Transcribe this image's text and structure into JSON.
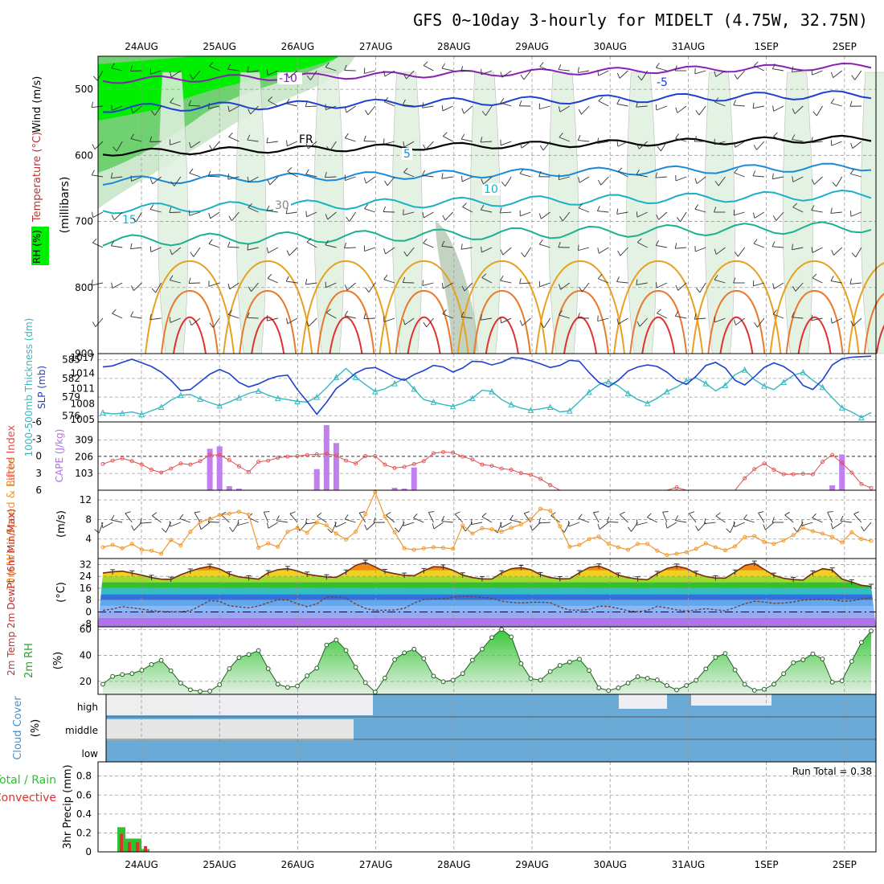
{
  "title": "GFS 0~10day 3-hourly for MIDELT (4.75W, 32.75N)",
  "dates": [
    "24AUG",
    "25AUG",
    "26AUG",
    "27AUG",
    "28AUG",
    "29AUG",
    "30AUG",
    "31AUG",
    "1SEP",
    "2SEP"
  ],
  "colors": {
    "rh_green": "#00ee00",
    "t_purple": "#8a1fb8",
    "t_blue": "#1f3fd0",
    "t_cyan": "#19b0c8",
    "t_teal": "#1bb090",
    "t_orange": "#e8a020",
    "t_red": "#e03030",
    "slp": "#1f3fd0",
    "thick": "#35b8c0",
    "li": "#e05050",
    "cape": "#c080f0",
    "wind": "#f09830",
    "precip_total": "#30c030",
    "precip_conv": "#e03030",
    "cloud": "#6aaad6"
  },
  "chart_data": [
    {
      "type": "heatmap",
      "name": "upper-air",
      "ylabel": "(millibars)",
      "side_labels": [
        "Wind (m/s)",
        "Temperature (°C)",
        "RH (%)"
      ],
      "yticks": [
        500,
        600,
        700,
        800,
        900
      ],
      "contour_labels": [
        "-10",
        "-5",
        "FR",
        "5",
        "10",
        "15",
        "30"
      ]
    },
    {
      "type": "line",
      "name": "slp-thickness",
      "left_label": "1000-500mb Thickness (dm)",
      "right_label": "SLP (mb)",
      "thickness_ticks": [
        585,
        582,
        579,
        576
      ],
      "slp_ticks": [
        1017,
        1014,
        1011,
        1008,
        1005
      ],
      "thickness": [
        576.5,
        576.3,
        576.4,
        576.6,
        576.2,
        576.8,
        577.4,
        578.5,
        579.3,
        579.4,
        578.7,
        578.1,
        577.6,
        578.2,
        578.9,
        579.6,
        580.0,
        579.3,
        578.8,
        578.6,
        578.3,
        578.2,
        579.0,
        580.5,
        582.2,
        583.6,
        582.2,
        581.0,
        579.9,
        580.3,
        581.2,
        582.0,
        580.3,
        578.6,
        578.2,
        577.8,
        577.5,
        578.0,
        578.8,
        580.1,
        579.9,
        578.6,
        577.8,
        577.2,
        576.9,
        577.1,
        577.4,
        576.6,
        576.8,
        578.3,
        579.8,
        581.0,
        581.5,
        580.8,
        579.6,
        578.6,
        578.0,
        578.8,
        579.9,
        580.6,
        581.6,
        582.1,
        581.2,
        580.0,
        580.9,
        582.6,
        583.4,
        581.8,
        580.8,
        580.2,
        581.4,
        582.5,
        583.0,
        581.7,
        580.6,
        578.9,
        577.3,
        576.6,
        575.7,
        576.5
      ],
      "slp": [
        1015.2,
        1015.4,
        1016.1,
        1016.7,
        1016.0,
        1015.3,
        1014.2,
        1012.6,
        1010.6,
        1010.8,
        1012.3,
        1013.8,
        1014.7,
        1013.9,
        1012.2,
        1011.3,
        1011.9,
        1012.8,
        1013.4,
        1013.6,
        1010.8,
        1008.5,
        1006.0,
        1008.3,
        1011.0,
        1012.4,
        1014.0,
        1014.9,
        1015.1,
        1014.2,
        1013.2,
        1012.6,
        1013.7,
        1014.5,
        1015.5,
        1015.2,
        1014.2,
        1015.0,
        1016.3,
        1016.2,
        1015.6,
        1016.1,
        1017.0,
        1016.9,
        1016.4,
        1015.8,
        1015.1,
        1015.5,
        1016.5,
        1016.3,
        1014.1,
        1012.2,
        1011.3,
        1012.6,
        1014.4,
        1015.2,
        1015.6,
        1015.3,
        1014.2,
        1012.6,
        1011.8,
        1013.4,
        1015.5,
        1016.1,
        1015.0,
        1012.6,
        1011.7,
        1013.3,
        1015.1,
        1016.0,
        1015.3,
        1014.0,
        1011.6,
        1010.8,
        1012.7,
        1015.6,
        1016.8,
        1017.1,
        1017.2,
        1017.3
      ]
    },
    {
      "type": "bar",
      "name": "lifted-index-cape",
      "left_label": "Lifted Index",
      "right_label": "CAPE (J/kg)",
      "li_ticks": [
        "-6",
        "-3",
        "0",
        "3",
        "6"
      ],
      "cape_ticks": [
        309,
        206,
        103
      ],
      "lifted_index": [
        1.4,
        0.8,
        0.4,
        0.9,
        1.5,
        2.4,
        2.9,
        2.2,
        1.3,
        1.5,
        0.9,
        -0.2,
        -0.2,
        0.7,
        1.8,
        2.8,
        1.0,
        0.8,
        0.3,
        0.1,
        0.0,
        -0.2,
        -0.3,
        -0.4,
        -0.1,
        0.8,
        1.3,
        0.0,
        0.0,
        1.5,
        2.1,
        1.9,
        1.4,
        0.9,
        -0.5,
        -0.7,
        -0.6,
        0.1,
        0.6,
        1.5,
        1.7,
        2.2,
        2.4,
        3.0,
        3.3,
        4.0,
        5.1,
        6,
        6,
        6,
        6,
        6,
        6,
        6,
        6,
        6,
        6,
        6,
        6,
        5.5,
        6,
        6,
        6,
        6,
        6,
        6,
        3.9,
        2.3,
        1.3,
        2.4,
        3.2,
        3.2,
        3.1,
        3.2,
        1.0,
        -0.2,
        1.2,
        2.9,
        4.9,
        5.6
      ],
      "cape": [
        2,
        0,
        0,
        0,
        0,
        0,
        0,
        0,
        0,
        0,
        0,
        255,
        270,
        25,
        10,
        0,
        0,
        0,
        0,
        0,
        0,
        0,
        130,
        400,
        290,
        0,
        0,
        0,
        0,
        0,
        15,
        10,
        140,
        0,
        0,
        0,
        0,
        0,
        0,
        0,
        0,
        0,
        0,
        0,
        0,
        0,
        0,
        0,
        0,
        0,
        0,
        0,
        0,
        0,
        0,
        0,
        0,
        0,
        0,
        0,
        0,
        0,
        0,
        0,
        0,
        0,
        0,
        0,
        0,
        0,
        0,
        0,
        0,
        0,
        0,
        30,
        220,
        0,
        0,
        0
      ]
    },
    {
      "type": "line",
      "name": "surface-wind",
      "left_label": "10m Wind Speed & Barbs",
      "unit": "(m/s)",
      "yticks": [
        12,
        8,
        4
      ],
      "speed": [
        2.3,
        2.8,
        2.1,
        3.0,
        1.8,
        1.6,
        1.0,
        3.8,
        2.7,
        5.5,
        7.5,
        8.1,
        8.9,
        9.2,
        9.6,
        9.0,
        2.2,
        3.1,
        2.4,
        5.5,
        6.3,
        5.3,
        7.4,
        6.8,
        5.1,
        3.9,
        5.5,
        9.1,
        13.6,
        8.6,
        5.4,
        2.1,
        1.8,
        2.1,
        2.3,
        2.2,
        2.0,
        6.8,
        5.1,
        6.2,
        6.0,
        5.5,
        6.3,
        7.0,
        8.1,
        10.2,
        9.8,
        6.6,
        2.4,
        2.8,
        4.0,
        4.5,
        3.0,
        2.3,
        1.8,
        3.0,
        3.0,
        1.6,
        0.7,
        1.0,
        1.3,
        2.0,
        3.1,
        2.3,
        1.7,
        2.5,
        4.4,
        4.6,
        3.4,
        3.0,
        3.7,
        4.8,
        6.3,
        5.6,
        5.1,
        4.4,
        3.3,
        5.4,
        4.0,
        3.6
      ]
    },
    {
      "type": "area",
      "name": "temperature-2m",
      "left_label": "2m Temp 2m DewPt (6hr Min/Max)",
      "unit": "(°C)",
      "yticks": [
        32,
        24,
        16,
        8,
        0,
        -8
      ],
      "temperature": [
        26.2,
        27.0,
        27.5,
        26.2,
        24.8,
        23.2,
        22.1,
        22.0,
        25.0,
        27.5,
        29.5,
        30.7,
        29.0,
        25.6,
        23.6,
        22.9,
        22.1,
        26.4,
        28.5,
        29.2,
        27.6,
        25.4,
        24.4,
        23.6,
        23.3,
        26.8,
        31.4,
        33.4,
        30.4,
        27.2,
        25.8,
        24.7,
        24.4,
        27.8,
        30.5,
        30.2,
        28.1,
        24.9,
        23.2,
        22.3,
        22.2,
        26.3,
        29.2,
        29.9,
        28.5,
        25.1,
        23.2,
        22.3,
        22.4,
        26.4,
        30.0,
        30.9,
        28.4,
        24.8,
        23.2,
        22.2,
        21.7,
        25.9,
        29.3,
        30.8,
        29.4,
        26.0,
        23.9,
        22.9,
        22.8,
        26.8,
        31.3,
        32.8,
        28.7,
        24.7,
        22.7,
        21.8,
        21.5,
        26.2,
        29.2,
        28.2,
        22.2,
        20.2,
        18.0,
        17.2
      ],
      "dewpoint": [
        1.1,
        2.0,
        3.6,
        2.8,
        1.9,
        1.0,
        0.3,
        0.2,
        0.2,
        0.9,
        4.2,
        7.7,
        7.2,
        4.2,
        3.5,
        2.8,
        4.0,
        6.3,
        8.2,
        8.1,
        5.6,
        3.6,
        5.5,
        10.0,
        10.2,
        9.3,
        5.3,
        2.4,
        1.1,
        1.2,
        1.3,
        2.5,
        6.0,
        8.4,
        8.8,
        8.9,
        10.0,
        10.5,
        10.4,
        9.8,
        9.3,
        7.2,
        6.5,
        6.1,
        6.5,
        6.6,
        6.3,
        3.3,
        1.3,
        1.2,
        1.7,
        3.9,
        3.7,
        2.4,
        0.8,
        0.2,
        1.1,
        3.8,
        2.8,
        1.4,
        0.6,
        1.3,
        2.3,
        1.5,
        0.8,
        3.0,
        5.6,
        7.2,
        6.7,
        5.8,
        6.1,
        6.8,
        8.0,
        8.3,
        8.5,
        8.2,
        7.3,
        7.4,
        8.8,
        9.6
      ]
    },
    {
      "type": "area",
      "name": "rh-2m",
      "left_label": "2m RH",
      "unit": "(%)",
      "yticks": [
        60,
        40,
        20
      ],
      "rh": [
        17.8,
        23.8,
        25.3,
        26.0,
        28.6,
        33.0,
        36.2,
        28.2,
        18.7,
        13.5,
        12.3,
        12.5,
        17.4,
        29.8,
        38.3,
        40.7,
        43.7,
        29.8,
        17.8,
        15.4,
        16.4,
        24.3,
        30.2,
        48.0,
        51.9,
        43.9,
        30.9,
        19.0,
        11.7,
        22.6,
        36.7,
        42.0,
        44.8,
        37.5,
        24.1,
        19.7,
        20.9,
        26.0,
        36.4,
        44.8,
        53.8,
        60.0,
        54.3,
        33.7,
        22.1,
        21.0,
        27.6,
        32.3,
        34.9,
        37.1,
        28.4,
        15.0,
        12.9,
        15.0,
        18.7,
        23.6,
        22.4,
        21.1,
        16.8,
        13.4,
        16.8,
        20.8,
        29.6,
        38.5,
        41.5,
        28.8,
        17.7,
        13.1,
        13.9,
        17.8,
        25.9,
        34.4,
        36.6,
        41.2,
        37.2,
        19.4,
        20.4,
        35.4,
        50.0,
        58.8
      ]
    },
    {
      "type": "table",
      "name": "cloud-cover",
      "left_label": "Cloud Cover",
      "unit": "(%)",
      "levels": [
        "high",
        "middle",
        "low"
      ]
    },
    {
      "type": "bar",
      "name": "precipitation",
      "left_label": "Total / Rain Convective",
      "ylabel": "3hr Precip (mm)",
      "yticks": [
        "0.8",
        "0.6",
        "0.4",
        "0.2",
        "0"
      ],
      "run_total_label": "Run Total = 0.38",
      "total": [
        0.26,
        0.14,
        0.14,
        0.03
      ],
      "convective": [
        0.19,
        0.1,
        0.1,
        0.06
      ]
    }
  ]
}
